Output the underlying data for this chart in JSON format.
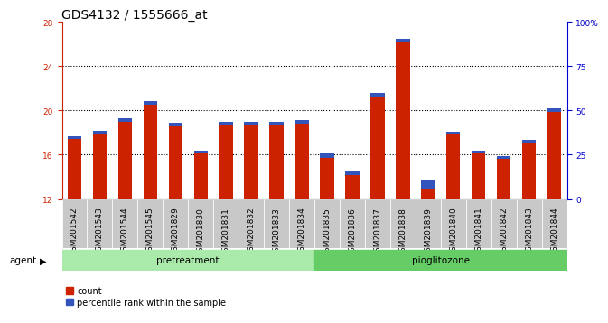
{
  "title": "GDS4132 / 1555666_at",
  "categories": [
    "GSM201542",
    "GSM201543",
    "GSM201544",
    "GSM201545",
    "GSM201829",
    "GSM201830",
    "GSM201831",
    "GSM201832",
    "GSM201833",
    "GSM201834",
    "GSM201835",
    "GSM201836",
    "GSM201837",
    "GSM201838",
    "GSM201839",
    "GSM201840",
    "GSM201841",
    "GSM201842",
    "GSM201843",
    "GSM201844"
  ],
  "red_values": [
    17.4,
    17.8,
    19.0,
    20.5,
    18.6,
    16.1,
    18.7,
    18.7,
    18.7,
    18.8,
    15.7,
    14.2,
    21.2,
    26.2,
    12.9,
    17.8,
    16.1,
    15.6,
    17.0,
    19.9
  ],
  "blue_values": [
    0.28,
    0.32,
    0.3,
    0.35,
    0.3,
    0.28,
    0.3,
    0.28,
    0.28,
    0.3,
    0.4,
    0.3,
    0.35,
    0.3,
    0.75,
    0.3,
    0.28,
    0.3,
    0.3,
    0.3
  ],
  "ymin": 12,
  "ymax": 28,
  "yticks_left": [
    12,
    16,
    20,
    24,
    28
  ],
  "yticks_right": [
    0,
    25,
    50,
    75,
    100
  ],
  "ytick_right_labels": [
    "0",
    "25",
    "50",
    "75",
    "100%"
  ],
  "bar_color": "#CC2200",
  "blue_color": "#3355BB",
  "bar_width": 0.55,
  "plot_bg": "#FFFFFF",
  "pre_color": "#AAEAAA",
  "pio_color": "#66CC66",
  "tick_bg": "#C8C8C8",
  "legend_count": "count",
  "legend_pct": "percentile rank within the sample",
  "title_fontsize": 10,
  "tick_fontsize": 6.5
}
